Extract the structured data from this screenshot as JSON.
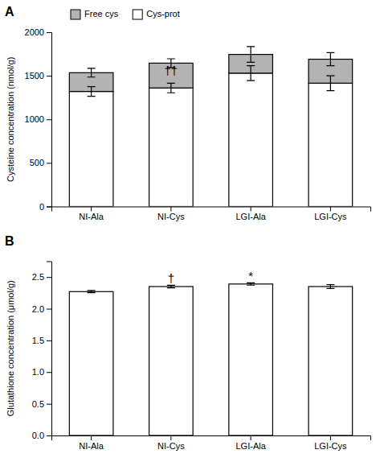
{
  "chart_data": [
    {
      "type": "bar",
      "stacked": true,
      "panel_label": "A",
      "categories": [
        "NI-Ala",
        "NI-Cys",
        "LGI-Ala",
        "LGI-Cys"
      ],
      "ylabel": "Cysteine concentration (nmol/g)",
      "series": [
        {
          "name": "Cys-prot",
          "color": "#ffffff",
          "values": [
            1320,
            1360,
            1530,
            1415
          ],
          "errors": [
            55,
            55,
            85,
            85
          ]
        },
        {
          "name": "Free cys",
          "color": "#b3b3b3",
          "values": [
            215,
            285,
            215,
            275
          ],
          "errors": [
            50,
            50,
            90,
            75
          ]
        }
      ],
      "ylim": [
        0,
        2000
      ],
      "yticks": [
        0,
        500,
        1000,
        1500,
        2000
      ],
      "grid": false,
      "legend": "upper left",
      "annotations": [
        {
          "text": "††",
          "category": "NI-Cys",
          "y": 1490
        }
      ]
    },
    {
      "type": "bar",
      "panel_label": "B",
      "categories": [
        "NI-Ala",
        "NI-Cys",
        "LGI-Ala",
        "LGI-Cys"
      ],
      "ylabel": "Glutathione concentration (μmol/g)",
      "values": [
        2.27,
        2.35,
        2.39,
        2.35
      ],
      "errors": [
        0.018,
        0.02,
        0.018,
        0.03
      ],
      "color": "#ffffff",
      "ylim": [
        0,
        2.75
      ],
      "yticks": [
        {
          "value": 0,
          "label": "0.0"
        },
        0.5,
        {
          "value": 1.0,
          "label": "1.0"
        },
        1.5,
        {
          "value": 2.0,
          "label": "2.0"
        },
        2.5
      ],
      "grid": false,
      "annotations": [
        {
          "text": "†",
          "category": "NI-Cys",
          "y": 2.385
        },
        {
          "text": "*",
          "category": "LGI-Ala",
          "y": 2.425
        }
      ]
    }
  ]
}
